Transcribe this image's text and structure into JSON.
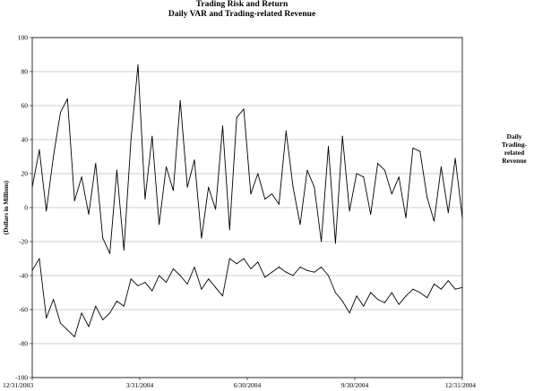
{
  "chart_data": {
    "type": "line",
    "title": "Trading Risk and Return",
    "subtitle": "Daily VAR and Trading-related Revenue",
    "xlabel": "",
    "ylabel": "(Dollars in Millions)",
    "ylim": [
      -100,
      100
    ],
    "yticks": [
      "100",
      "80",
      "60",
      "40",
      "20",
      "0",
      "-20",
      "-40",
      "-60",
      "-80",
      "-100"
    ],
    "xticks": [
      "12/31/2003",
      "3/31/2004",
      "6/30/2004",
      "9/30/2004",
      "12/31/2004"
    ],
    "xrange": [
      "2003-12-31",
      "2004-12-31"
    ],
    "grid": "horizontal",
    "legend_position": "right",
    "series": [
      {
        "name": "Daily Trading-related Revenue",
        "x": [
          "2003-12-31",
          "2004-01-06",
          "2004-01-12",
          "2004-01-18",
          "2004-01-24",
          "2004-01-30",
          "2004-02-05",
          "2004-02-11",
          "2004-02-17",
          "2004-02-23",
          "2004-02-29",
          "2004-03-06",
          "2004-03-12",
          "2004-03-18",
          "2004-03-24",
          "2004-03-30",
          "2004-04-05",
          "2004-04-11",
          "2004-04-17",
          "2004-04-23",
          "2004-04-29",
          "2004-05-05",
          "2004-05-11",
          "2004-05-17",
          "2004-05-23",
          "2004-05-29",
          "2004-06-04",
          "2004-06-10",
          "2004-06-16",
          "2004-06-22",
          "2004-06-28",
          "2004-07-04",
          "2004-07-10",
          "2004-07-16",
          "2004-07-22",
          "2004-07-28",
          "2004-08-03",
          "2004-08-09",
          "2004-08-15",
          "2004-08-21",
          "2004-08-27",
          "2004-09-02",
          "2004-09-08",
          "2004-09-14",
          "2004-09-20",
          "2004-09-26",
          "2004-10-02",
          "2004-10-08",
          "2004-10-14",
          "2004-10-20",
          "2004-10-26",
          "2004-11-01",
          "2004-11-07",
          "2004-11-13",
          "2004-11-19",
          "2004-11-25",
          "2004-12-01",
          "2004-12-07",
          "2004-12-13",
          "2004-12-19",
          "2004-12-25",
          "2004-12-31"
        ],
        "values": [
          12,
          34,
          -2,
          30,
          56,
          64,
          4,
          18,
          -4,
          26,
          -18,
          -27,
          22,
          -25,
          40,
          84,
          5,
          42,
          -10,
          24,
          10,
          63,
          12,
          28,
          -18,
          12,
          -1,
          48,
          -13,
          53,
          58,
          8,
          20,
          5,
          8,
          2,
          45,
          12,
          -10,
          22,
          12,
          -20,
          36,
          -21,
          42,
          -2,
          20,
          18,
          -4,
          26,
          22,
          8,
          18,
          -6,
          35,
          33,
          6,
          -8,
          24,
          -3,
          29,
          -6
        ]
      },
      {
        "name": "Daily VAR",
        "x": [
          "2003-12-31",
          "2004-01-06",
          "2004-01-12",
          "2004-01-18",
          "2004-01-24",
          "2004-01-30",
          "2004-02-05",
          "2004-02-11",
          "2004-02-17",
          "2004-02-23",
          "2004-02-29",
          "2004-03-06",
          "2004-03-12",
          "2004-03-18",
          "2004-03-24",
          "2004-03-30",
          "2004-04-05",
          "2004-04-11",
          "2004-04-17",
          "2004-04-23",
          "2004-04-29",
          "2004-05-05",
          "2004-05-11",
          "2004-05-17",
          "2004-05-23",
          "2004-05-29",
          "2004-06-04",
          "2004-06-10",
          "2004-06-16",
          "2004-06-22",
          "2004-06-28",
          "2004-07-04",
          "2004-07-10",
          "2004-07-16",
          "2004-07-22",
          "2004-07-28",
          "2004-08-03",
          "2004-08-09",
          "2004-08-15",
          "2004-08-21",
          "2004-08-27",
          "2004-09-02",
          "2004-09-08",
          "2004-09-14",
          "2004-09-20",
          "2004-09-26",
          "2004-10-02",
          "2004-10-08",
          "2004-10-14",
          "2004-10-20",
          "2004-10-26",
          "2004-11-01",
          "2004-11-07",
          "2004-11-13",
          "2004-11-19",
          "2004-11-25",
          "2004-12-01",
          "2004-12-07",
          "2004-12-13",
          "2004-12-19",
          "2004-12-25",
          "2004-12-31"
        ],
        "values": [
          -37,
          -30,
          -65,
          -54,
          -68,
          -72,
          -76,
          -62,
          -70,
          -58,
          -66,
          -62,
          -55,
          -58,
          -42,
          -46,
          -44,
          -49,
          -40,
          -44,
          -36,
          -40,
          -45,
          -35,
          -48,
          -42,
          -47,
          -52,
          -30,
          -33,
          -30,
          -36,
          -32,
          -41,
          -38,
          -35,
          -38,
          -40,
          -35,
          -37,
          -38,
          -35,
          -40,
          -50,
          -55,
          -62,
          -52,
          -58,
          -50,
          -54,
          -56,
          -50,
          -57,
          -52,
          -48,
          -50,
          -53,
          -45,
          -48,
          -43,
          -48,
          -47
        ]
      }
    ]
  }
}
